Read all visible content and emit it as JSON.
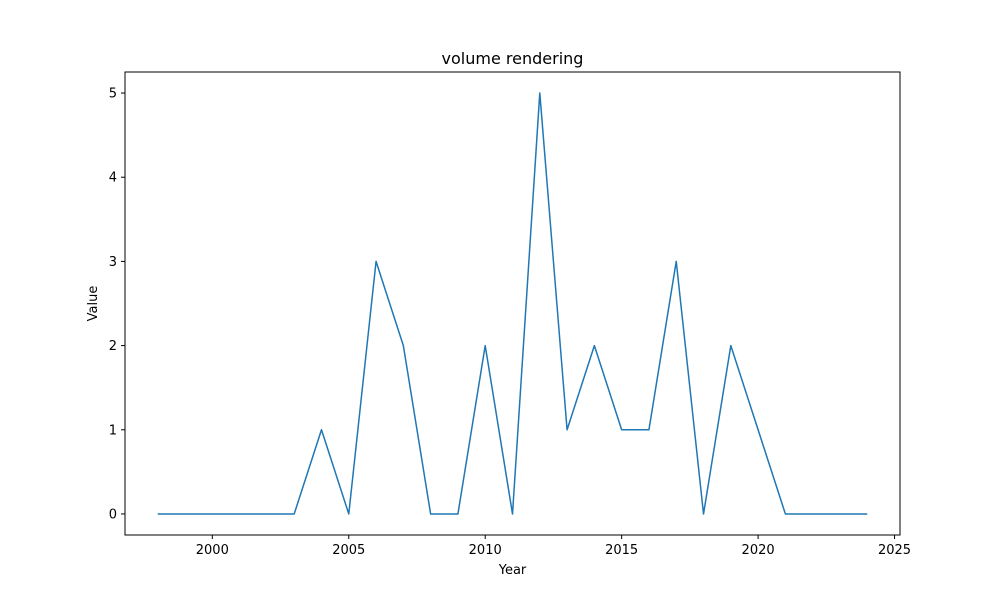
{
  "chart_data": {
    "type": "line",
    "title": "volume rendering",
    "xlabel": "Year",
    "ylabel": "Value",
    "xlim": [
      1996.8,
      2025.2
    ],
    "ylim": [
      -0.25,
      5.25
    ],
    "xticks": [
      2000,
      2005,
      2010,
      2015,
      2020,
      2025
    ],
    "yticks": [
      0,
      1,
      2,
      3,
      4,
      5
    ],
    "grid": false,
    "series": [
      {
        "color": "#1f77b4",
        "x": [
          1998,
          1999,
          2000,
          2001,
          2002,
          2003,
          2004,
          2005,
          2006,
          2007,
          2008,
          2009,
          2010,
          2011,
          2012,
          2013,
          2014,
          2015,
          2016,
          2017,
          2018,
          2019,
          2020,
          2021,
          2022,
          2023,
          2024
        ],
        "y": [
          0,
          0,
          0,
          0,
          0,
          0,
          1,
          0,
          3,
          2,
          0,
          0,
          2,
          0,
          5,
          1,
          2,
          1,
          1,
          3,
          0,
          2,
          1,
          0,
          0,
          0,
          0
        ]
      }
    ]
  }
}
